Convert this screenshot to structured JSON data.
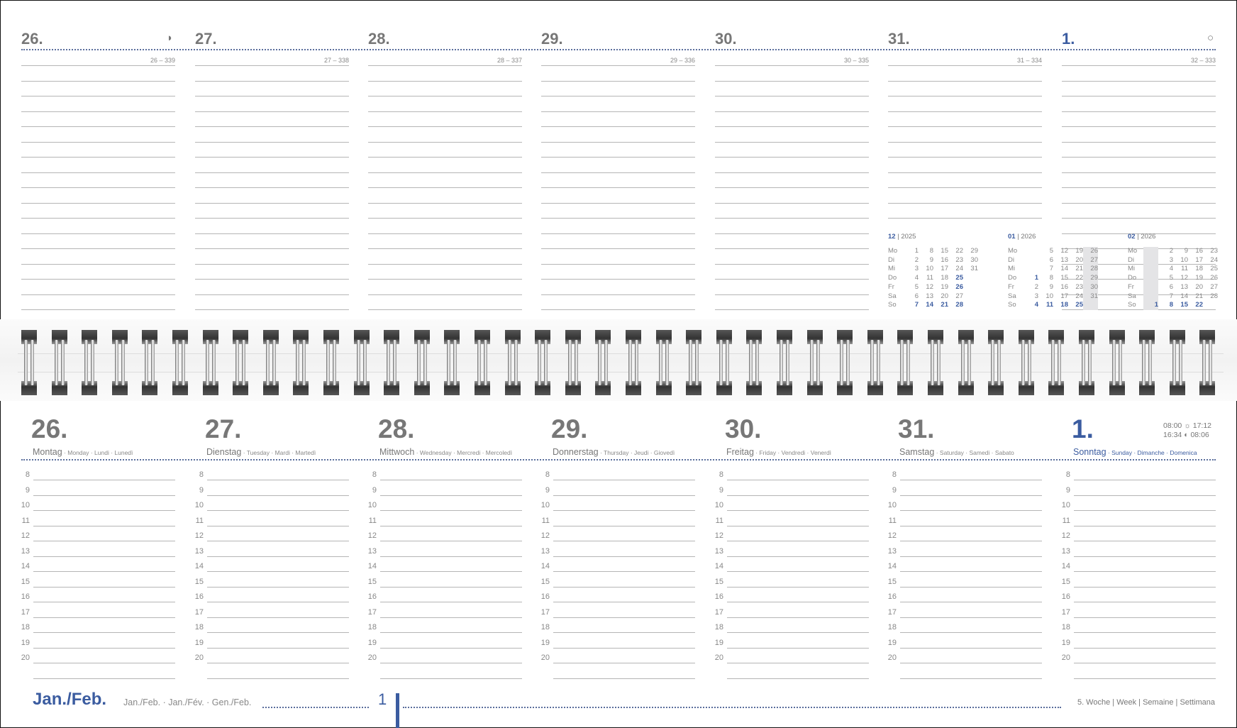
{
  "colors": {
    "accent": "#3b5ca0",
    "text": "#777777",
    "line": "#b5b5b5"
  },
  "top": {
    "days": [
      {
        "num": "26.",
        "ref": "26 – 339",
        "icon": "waxing-moon-icon",
        "sunday": false
      },
      {
        "num": "27.",
        "ref": "27 – 338",
        "sunday": false
      },
      {
        "num": "28.",
        "ref": "28 – 337",
        "sunday": false
      },
      {
        "num": "29.",
        "ref": "29 – 336",
        "sunday": false
      },
      {
        "num": "30.",
        "ref": "30 – 335",
        "sunday": false
      },
      {
        "num": "31.",
        "ref": "31 – 334",
        "sunday": false
      },
      {
        "num": "1.",
        "ref": "32 – 333",
        "icon": "full-moon-icon",
        "sunday": true
      }
    ]
  },
  "mini_calendars": [
    {
      "month": "12",
      "year": "2025",
      "rows": [
        [
          "Mo",
          "1",
          "8",
          "15",
          "22",
          "29"
        ],
        [
          "Di",
          "2",
          "9",
          "16",
          "23",
          "30"
        ],
        [
          "Mi",
          "3",
          "10",
          "17",
          "24",
          "31"
        ],
        [
          "Do",
          "4",
          "11",
          "18",
          "*25",
          ""
        ],
        [
          "Fr",
          "5",
          "12",
          "19",
          "*26",
          ""
        ],
        [
          "Sa",
          "6",
          "13",
          "20",
          "27",
          ""
        ],
        [
          "So",
          "*7",
          "*14",
          "*21",
          "*28",
          ""
        ]
      ]
    },
    {
      "month": "01",
      "year": "2026",
      "rows": [
        [
          "Mo",
          "",
          "5",
          "12",
          "19",
          "26"
        ],
        [
          "Di",
          "",
          "6",
          "13",
          "20",
          "27"
        ],
        [
          "Mi",
          "",
          "7",
          "14",
          "21",
          "28"
        ],
        [
          "Do",
          "*1",
          "8",
          "15",
          "22",
          "29"
        ],
        [
          "Fr",
          "2",
          "9",
          "16",
          "23",
          "30"
        ],
        [
          "Sa",
          "3",
          "10",
          "17",
          "24",
          "31"
        ],
        [
          "So",
          "*4",
          "*11",
          "*18",
          "*25",
          ""
        ]
      ],
      "highlight_col": 5
    },
    {
      "month": "02",
      "year": "2026",
      "rows": [
        [
          "Mo",
          "",
          "2",
          "9",
          "16",
          "23"
        ],
        [
          "Di",
          "",
          "3",
          "10",
          "17",
          "24"
        ],
        [
          "Mi",
          "",
          "4",
          "11",
          "18",
          "25"
        ],
        [
          "Do",
          "",
          "5",
          "12",
          "19",
          "26"
        ],
        [
          "Fr",
          "",
          "6",
          "13",
          "20",
          "27"
        ],
        [
          "Sa",
          "",
          "7",
          "14",
          "21",
          "28"
        ],
        [
          "So",
          "*1",
          "*8",
          "*15",
          "*22",
          ""
        ]
      ],
      "highlight_col": 1
    }
  ],
  "bottom": {
    "days": [
      {
        "num": "26.",
        "name": "Montag",
        "sub": " · Monday · Lundi · Lunedì"
      },
      {
        "num": "27.",
        "name": "Dienstag",
        "sub": " · Tuesday · Mardi · Martedì"
      },
      {
        "num": "28.",
        "name": "Mittwoch",
        "sub": " · Wednesday · Mercredi · Mercoledì"
      },
      {
        "num": "29.",
        "name": "Donnerstag",
        "sub": " · Thursday · Jeudi · Giovedì"
      },
      {
        "num": "30.",
        "name": "Freitag",
        "sub": " · Friday · Vendredi · Venerdì"
      },
      {
        "num": "31.",
        "name": "Samstag",
        "sub": " · Saturday · Samedi · Sabato"
      },
      {
        "num": "1.",
        "name": "Sonntag",
        "sub": " · Sunday · Dimanche · Domenica",
        "sunday": true
      }
    ],
    "hours": [
      "8",
      "9",
      "10",
      "11",
      "12",
      "13",
      "14",
      "15",
      "16",
      "17",
      "18",
      "19",
      "20"
    ],
    "sun_moon": {
      "sunrise": "08:00",
      "sunset": "17:12",
      "moonrise": "16:34",
      "moonset": "08:06"
    }
  },
  "footer": {
    "month": "Jan./Feb.",
    "month_translations": "Jan./Feb. · Jan./Fév. · Gen./Feb.",
    "month_number": "1",
    "week": "5. Woche | Week | Semaine | Settimana"
  }
}
